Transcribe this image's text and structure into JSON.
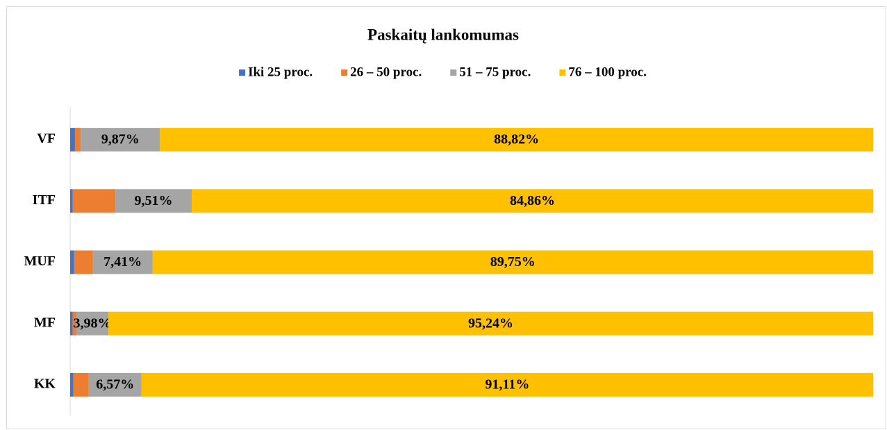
{
  "chart_data": {
    "type": "stacked-bar-horizontal",
    "title": "Paskaitų lankomumas",
    "categories": [
      "VF",
      "ITF",
      "MUF",
      "MF",
      "KK"
    ],
    "xlim": [
      0,
      100
    ],
    "legend": "top",
    "series": [
      {
        "name": "Iki 25 proc.",
        "color": "#4472c4",
        "values": [
          0.6,
          0.33,
          0.5,
          0.3,
          0.4
        ]
      },
      {
        "name": "26 – 50 proc.",
        "color": "#ed7d31",
        "values": [
          0.71,
          5.3,
          2.34,
          0.48,
          1.92
        ]
      },
      {
        "name": "51 – 75 proc.",
        "color": "#a5a5a5",
        "values": [
          9.87,
          9.51,
          7.41,
          3.98,
          6.57
        ],
        "value_labels": [
          "9,87%",
          "9,51%",
          "7,41%",
          "3,98%",
          "6,57%"
        ]
      },
      {
        "name": "76 – 100 proc.",
        "color": "#ffc000",
        "values": [
          88.82,
          84.86,
          89.75,
          95.24,
          91.11
        ],
        "value_labels": [
          "88,82%",
          "84,86%",
          "89,75%",
          "95,24%",
          "91,11%"
        ]
      }
    ]
  }
}
